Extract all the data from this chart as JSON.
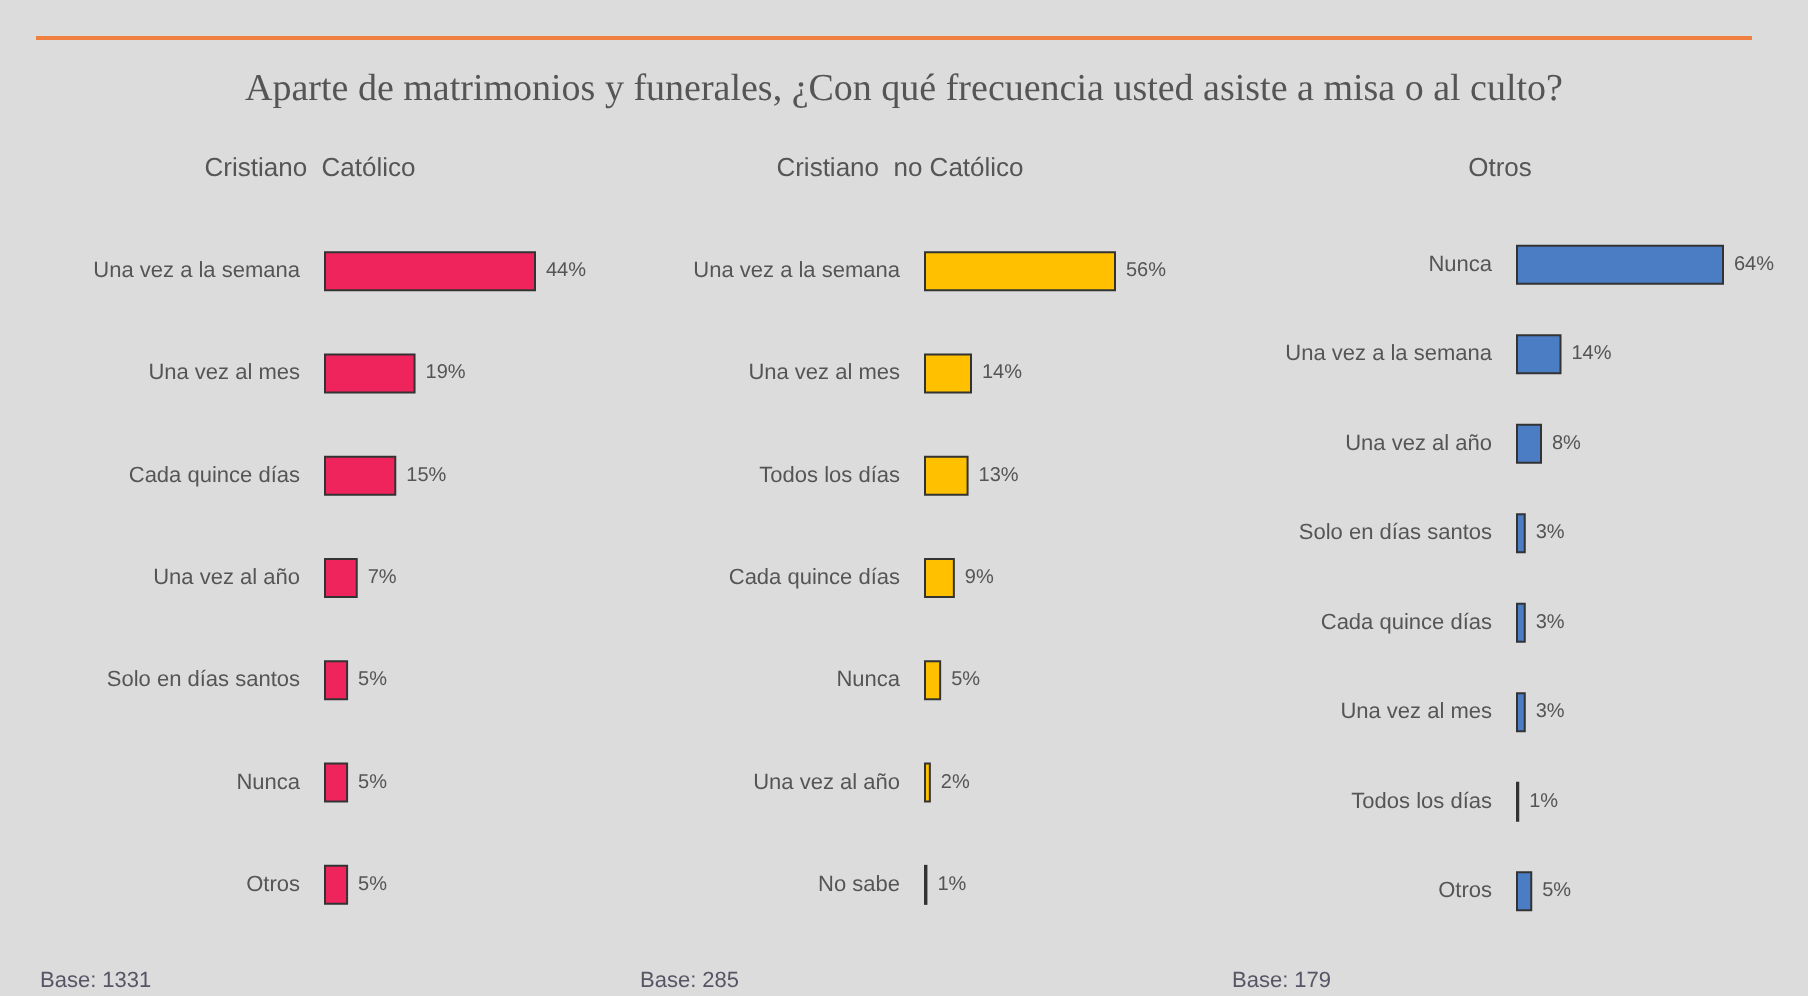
{
  "chart_data": [
    {
      "type": "bar",
      "orientation": "horizontal",
      "title": "Aparte de matrimonios y funerales, ¿Con qué frecuencia usted asiste a misa o al culto?",
      "subtitle": "Cristiano  Católico",
      "categories": [
        "Una vez a la semana",
        "Una vez al mes",
        "Cada quince días",
        "Una vez al año",
        "Solo en días santos",
        "Nunca",
        "Otros"
      ],
      "values": [
        44,
        19,
        15,
        7,
        5,
        5,
        5
      ],
      "value_labels": [
        "44%",
        "19%",
        "15%",
        "7%",
        "5%",
        "5%",
        "5%"
      ],
      "color": "#f0245c",
      "tick_labels": "y",
      "annotations": [
        "Base: 1331"
      ]
    },
    {
      "type": "bar",
      "orientation": "horizontal",
      "subtitle": "Cristiano  no Católico",
      "categories": [
        "Una vez a la semana",
        "Una vez al mes",
        "Todos los días",
        "Cada quince días",
        "Nunca",
        "Una vez al año",
        "No sabe"
      ],
      "values": [
        56,
        14,
        13,
        9,
        5,
        2,
        1
      ],
      "value_labels": [
        "56%",
        "14%",
        "13%",
        "9%",
        "5%",
        "2%",
        "1%"
      ],
      "color": "#ffc000",
      "tick_labels": "y",
      "annotations": [
        "Base: 285"
      ]
    },
    {
      "type": "bar",
      "orientation": "horizontal",
      "subtitle": "Otros",
      "categories": [
        "Nunca",
        "Una vez a la semana",
        "Una vez al año",
        "Solo en días santos",
        "Cada quince días",
        "Una vez al mes",
        "Todos los días",
        "Otros"
      ],
      "values": [
        64,
        14,
        8,
        3,
        3,
        3,
        1,
        5
      ],
      "value_labels": [
        "64%",
        "14%",
        "8%",
        "3%",
        "3%",
        "3%",
        "1%",
        "5%"
      ],
      "color": "#4a7dc4",
      "tick_labels": "y",
      "annotations": [
        "Base: 179"
      ]
    }
  ]
}
